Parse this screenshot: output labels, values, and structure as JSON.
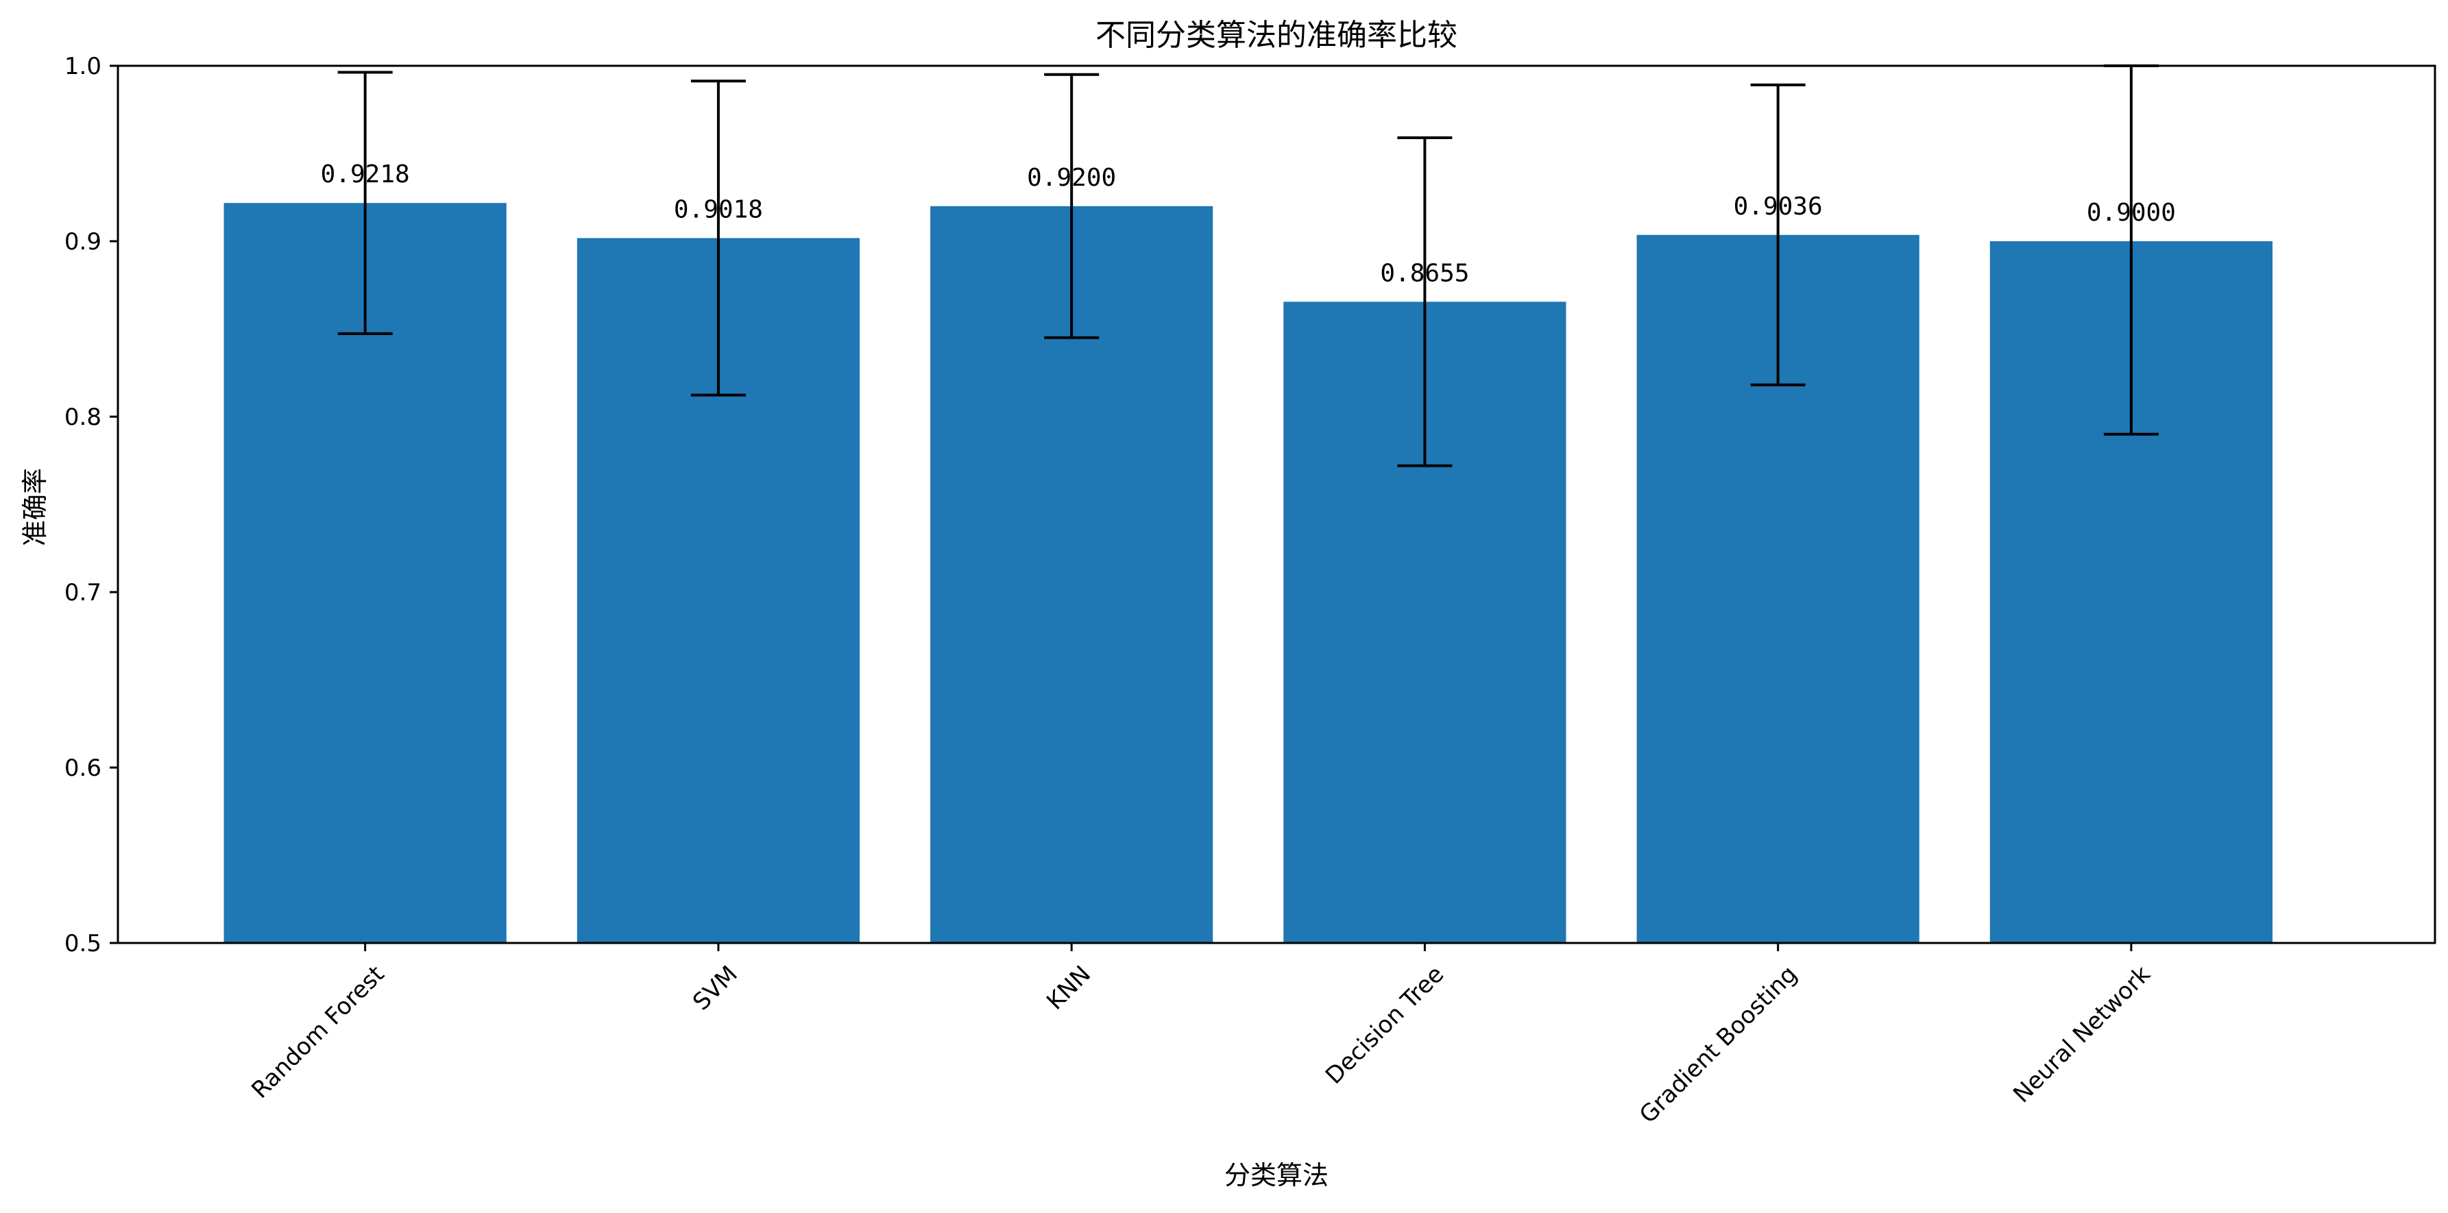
{
  "chart_data": {
    "type": "bar",
    "title": "不同分类算法的准确率比较",
    "xlabel": "分类算法",
    "ylabel": "准确率",
    "categories": [
      "Random Forest",
      "SVM",
      "KNN",
      "Decision Tree",
      "Gradient Boosting",
      "Neural Network"
    ],
    "values": [
      0.9218,
      0.9018,
      0.92,
      0.8655,
      0.9036,
      0.9
    ],
    "value_labels": [
      "0.9218",
      "0.9018",
      "0.9200",
      "0.8655",
      "0.9036",
      "0.9000"
    ],
    "error": [
      0.0745,
      0.0895,
      0.075,
      0.0935,
      0.0855,
      0.11
    ],
    "ylim": [
      0.5,
      1.0
    ],
    "yticks": [
      0.5,
      0.6,
      0.7,
      0.8,
      0.9,
      1.0
    ],
    "ytick_labels": [
      "0.5",
      "0.6",
      "0.7",
      "0.8",
      "0.9",
      "1.0"
    ],
    "x_tick_rotation_deg": 45,
    "grid": false,
    "bar_color": "#1f77b4",
    "error_color": "#000000"
  }
}
